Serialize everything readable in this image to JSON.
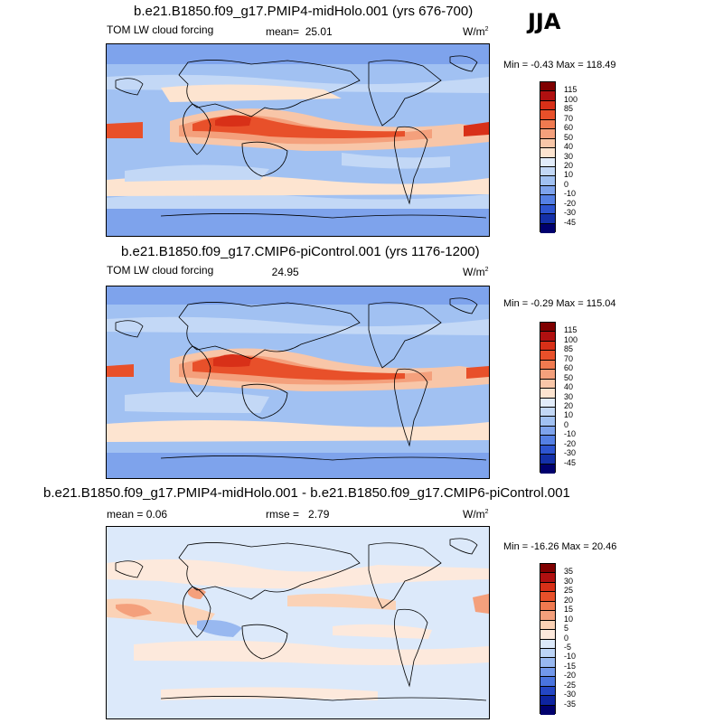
{
  "season": "JJA",
  "panels": [
    {
      "title": "b.e21.B1850.f09_g17.PMIP4-midHolo.001 (yrs 676-700)",
      "variable": "TOM LW cloud forcing",
      "stat_label": "mean=",
      "stat_value": "25.01",
      "units_base": "W/m",
      "units_exp": "2",
      "minmax": "Min =  -0.43 Max = 118.49",
      "levels": [
        "115",
        "100",
        "85",
        "70",
        "60",
        "50",
        "40",
        "30",
        "20",
        "10",
        "0",
        "-10",
        "-20",
        "-30",
        "-45"
      ],
      "colors": [
        "#7f0000",
        "#b01010",
        "#d83018",
        "#e8502a",
        "#f07a50",
        "#f4a07c",
        "#f8c6a8",
        "#fde4d0",
        "#e2ecfa",
        "#c3d8f6",
        "#a1c1f2",
        "#7ea3ec",
        "#5580e4",
        "#2e55d0",
        "#1430a8",
        "#00006e"
      ]
    },
    {
      "title": "b.e21.B1850.f09_g17.CMIP6-piControl.001 (yrs 1176-1200)",
      "variable": "TOM LW cloud forcing",
      "stat_label": "",
      "stat_value": "24.95",
      "units_base": "W/m",
      "units_exp": "2",
      "minmax": "Min =  -0.29 Max = 115.04",
      "levels": [
        "115",
        "100",
        "85",
        "70",
        "60",
        "50",
        "40",
        "30",
        "20",
        "10",
        "0",
        "-10",
        "-20",
        "-30",
        "-45"
      ],
      "colors": [
        "#7f0000",
        "#b01010",
        "#d83018",
        "#e8502a",
        "#f07a50",
        "#f4a07c",
        "#f8c6a8",
        "#fde4d0",
        "#e2ecfa",
        "#c3d8f6",
        "#a1c1f2",
        "#7ea3ec",
        "#5580e4",
        "#2e55d0",
        "#1430a8",
        "#00006e"
      ]
    },
    {
      "title": "b.e21.B1850.f09_g17.PMIP4-midHolo.001 - b.e21.B1850.f09_g17.CMIP6-piControl.001",
      "variable": "mean =   0.06",
      "stat_label": "rmse =",
      "stat_value": "2.79",
      "units_base": "W/m",
      "units_exp": "2",
      "minmax": "Min = -16.26 Max =  20.46",
      "levels": [
        "35",
        "30",
        "25",
        "20",
        "15",
        "10",
        "5",
        "0",
        "-5",
        "-10",
        "-15",
        "-20",
        "-25",
        "-30",
        "-35"
      ],
      "colors": [
        "#7f0000",
        "#b01010",
        "#d83018",
        "#e8502a",
        "#f07a50",
        "#f4a07c",
        "#fbd2b6",
        "#fde9dc",
        "#dce9fa",
        "#bcd4f6",
        "#98b8f0",
        "#7298ea",
        "#4a74de",
        "#2446c4",
        "#0e24a0",
        "#00006e"
      ]
    }
  ]
}
